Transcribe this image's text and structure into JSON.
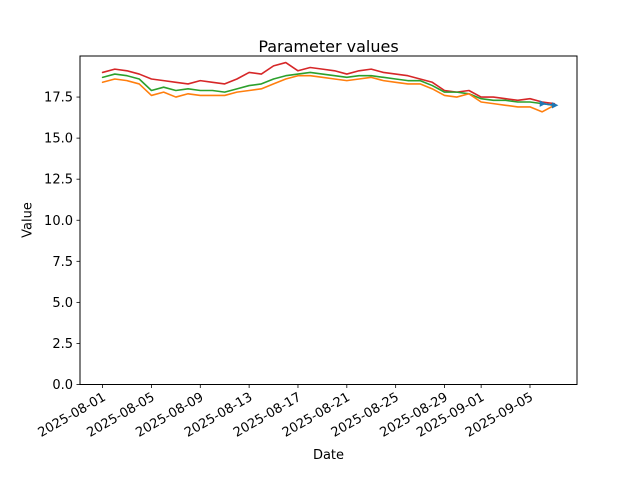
{
  "figure": {
    "title": "Parameter values",
    "xlabel": "Date",
    "ylabel": "Value"
  },
  "chart_data": {
    "type": "line",
    "title": "Parameter values",
    "xlabel": "Date",
    "ylabel": "Value",
    "grid": false,
    "legend": "none",
    "ylim": [
      0,
      20
    ],
    "x_margin": 0.05,
    "yticks": [
      "0.0",
      "2.5",
      "5.0",
      "7.5",
      "10.0",
      "12.5",
      "15.0",
      "17.5"
    ],
    "ytick_values": [
      0,
      2.5,
      5,
      7.5,
      10,
      12.5,
      15,
      17.5
    ],
    "xticks": {
      "indices": [
        0,
        4,
        8,
        12,
        16,
        20,
        24,
        28,
        31,
        35
      ],
      "labels": [
        "2025-08-01",
        "2025-08-05",
        "2025-08-09",
        "2025-08-13",
        "2025-08-17",
        "2025-08-21",
        "2025-08-25",
        "2025-08-29",
        "2025-09-01",
        "2025-09-05"
      ]
    },
    "dates": [
      "2025-08-01",
      "2025-08-02",
      "2025-08-03",
      "2025-08-04",
      "2025-08-05",
      "2025-08-06",
      "2025-08-07",
      "2025-08-08",
      "2025-08-09",
      "2025-08-10",
      "2025-08-11",
      "2025-08-12",
      "2025-08-13",
      "2025-08-14",
      "2025-08-15",
      "2025-08-16",
      "2025-08-17",
      "2025-08-18",
      "2025-08-19",
      "2025-08-20",
      "2025-08-21",
      "2025-08-22",
      "2025-08-23",
      "2025-08-24",
      "2025-08-25",
      "2025-08-26",
      "2025-08-27",
      "2025-08-28",
      "2025-08-29",
      "2025-08-30",
      "2025-08-31",
      "2025-09-01",
      "2025-09-02",
      "2025-09-03",
      "2025-09-04",
      "2025-09-05",
      "2025-09-06",
      "2025-09-07"
    ],
    "series": [
      {
        "name": "red",
        "color": "#d62728",
        "marker": "none",
        "values": [
          19.0,
          19.2,
          19.1,
          18.9,
          18.6,
          18.5,
          18.4,
          18.3,
          18.5,
          18.4,
          18.3,
          18.6,
          19.0,
          18.9,
          19.4,
          19.6,
          19.1,
          19.3,
          19.2,
          19.1,
          18.9,
          19.1,
          19.2,
          19.0,
          18.9,
          18.8,
          18.6,
          18.4,
          17.9,
          17.8,
          17.9,
          17.5,
          17.5,
          17.4,
          17.3,
          17.4,
          17.2,
          17.1
        ]
      },
      {
        "name": "green",
        "color": "#2ca02c",
        "marker": "none",
        "values": [
          18.7,
          18.9,
          18.8,
          18.6,
          17.9,
          18.1,
          17.9,
          18.0,
          17.9,
          17.9,
          17.8,
          18.0,
          18.2,
          18.3,
          18.6,
          18.8,
          18.9,
          19.0,
          18.9,
          18.8,
          18.7,
          18.8,
          18.8,
          18.7,
          18.6,
          18.5,
          18.5,
          18.2,
          17.8,
          17.8,
          17.7,
          17.4,
          17.3,
          17.3,
          17.2,
          17.2,
          17.1,
          17.0
        ]
      },
      {
        "name": "orange",
        "color": "#ff7f0e",
        "marker": "none",
        "values": [
          18.4,
          18.6,
          18.5,
          18.3,
          17.6,
          17.8,
          17.5,
          17.7,
          17.6,
          17.6,
          17.6,
          17.8,
          17.9,
          18.0,
          18.3,
          18.6,
          18.8,
          18.8,
          18.7,
          18.6,
          18.5,
          18.6,
          18.7,
          18.5,
          18.4,
          18.3,
          18.3,
          18.0,
          17.6,
          17.5,
          17.7,
          17.2,
          17.1,
          17.0,
          16.9,
          16.9,
          16.6,
          17.0
        ]
      },
      {
        "name": "blue",
        "color": "#1f77b4",
        "marker": "arrow-right",
        "values": [
          null,
          null,
          null,
          null,
          null,
          null,
          null,
          null,
          null,
          null,
          null,
          null,
          null,
          null,
          null,
          null,
          null,
          null,
          null,
          null,
          null,
          null,
          null,
          null,
          null,
          null,
          null,
          null,
          null,
          null,
          null,
          null,
          null,
          null,
          null,
          null,
          17.1,
          17.0
        ]
      }
    ]
  }
}
